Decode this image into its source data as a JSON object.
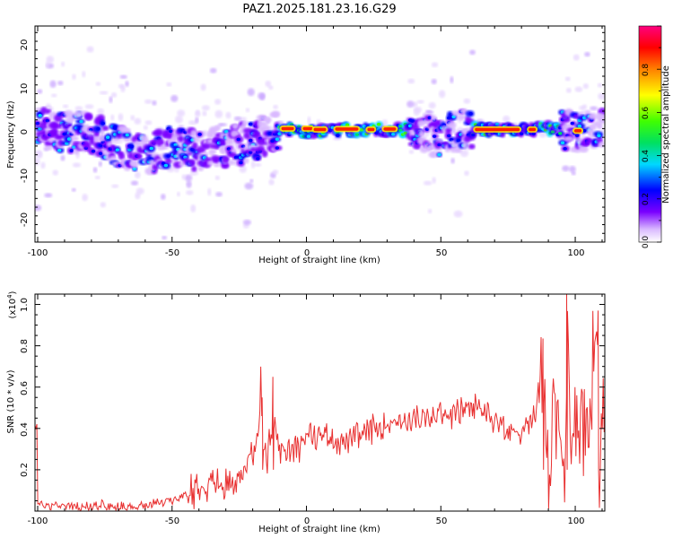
{
  "title": "PAZ1.2025.181.23.16.G29",
  "chart_data": [
    {
      "type": "heatmap",
      "xlabel": "Height of straight line (km)",
      "ylabel": "Frequency (Hz)",
      "xlim": [
        -101,
        111
      ],
      "ylim": [
        -25,
        24.5
      ],
      "x_ticks": [
        "-100",
        "-50",
        "0",
        "50",
        "100"
      ],
      "y_ticks": [
        "20",
        "10",
        "0",
        "-10",
        "-20"
      ],
      "colorbar": {
        "label": "Normalized spectral amplitude",
        "range": [
          0,
          1
        ],
        "ticks": [
          "0.0",
          "0.2",
          "0.4",
          "0.6",
          "0.8"
        ],
        "colors": [
          "#ffffff",
          "#d9b8ff",
          "#7a00ff",
          "#0000ff",
          "#00e0ff",
          "#00ff40",
          "#ffff00",
          "#ff8000",
          "#ff0000",
          "#ff0080"
        ]
      },
      "band_center_hz": [
        {
          "x": -100,
          "y": 1
        },
        {
          "x": -90,
          "y": 0
        },
        {
          "x": -80,
          "y": 0
        },
        {
          "x": -70,
          "y": -3
        },
        {
          "x": -60,
          "y": -5
        },
        {
          "x": -50,
          "y": -3
        },
        {
          "x": -40,
          "y": -4
        },
        {
          "x": -30,
          "y": -3
        },
        {
          "x": -20,
          "y": -2
        },
        {
          "x": -10,
          "y": 1
        },
        {
          "x": 0,
          "y": 0.3
        },
        {
          "x": 20,
          "y": 0.8
        },
        {
          "x": 40,
          "y": 0.8
        },
        {
          "x": 45,
          "y": -1
        },
        {
          "x": 55,
          "y": 0
        },
        {
          "x": 60,
          "y": 0.8
        },
        {
          "x": 80,
          "y": 0.8
        },
        {
          "x": 90,
          "y": 1
        },
        {
          "x": 100,
          "y": 0.5
        },
        {
          "x": 111,
          "y": 0.5
        }
      ]
    },
    {
      "type": "line",
      "xlabel": "Height of straight line (km)",
      "ylabel": "SNR (10 * v/v)",
      "scale_label": "(x10",
      "scale_exponent": "4",
      "xlim": [
        -101,
        111
      ],
      "ylim": [
        0,
        1.05
      ],
      "x_ticks": [
        "-100",
        "-50",
        "0",
        "50",
        "100"
      ],
      "y_ticks": [
        "1.0",
        "0.8",
        "0.6",
        "0.4",
        "0.2"
      ],
      "color": "#e83030",
      "series": [
        {
          "x": [
            -100,
            -90,
            -80,
            -70,
            -60,
            -55,
            -50,
            -45,
            -40,
            -35,
            -30,
            -25,
            -20,
            -18,
            -17,
            -16,
            -15,
            -12,
            -10,
            -5,
            0,
            5,
            10,
            15,
            20,
            25,
            30,
            35,
            40,
            45,
            50,
            55,
            60,
            65,
            70,
            75,
            80,
            85,
            88,
            90,
            92,
            95,
            96,
            97,
            98,
            100,
            102,
            105,
            108,
            109,
            110,
            111
          ],
          "y": [
            0.03,
            0.03,
            0.02,
            0.02,
            0.02,
            0.04,
            0.05,
            0.08,
            0.14,
            0.15,
            0.12,
            0.18,
            0.25,
            0.4,
            0.62,
            0.3,
            0.25,
            0.45,
            0.28,
            0.32,
            0.35,
            0.38,
            0.35,
            0.33,
            0.36,
            0.4,
            0.43,
            0.44,
            0.45,
            0.43,
            0.48,
            0.47,
            0.5,
            0.5,
            0.45,
            0.38,
            0.4,
            0.45,
            0.75,
            0.2,
            0.5,
            0.3,
            0.05,
            1.05,
            0.35,
            0.5,
            0.45,
            0.4,
            0.97,
            0.1,
            0.42,
            0.42
          ]
        }
      ]
    }
  ]
}
